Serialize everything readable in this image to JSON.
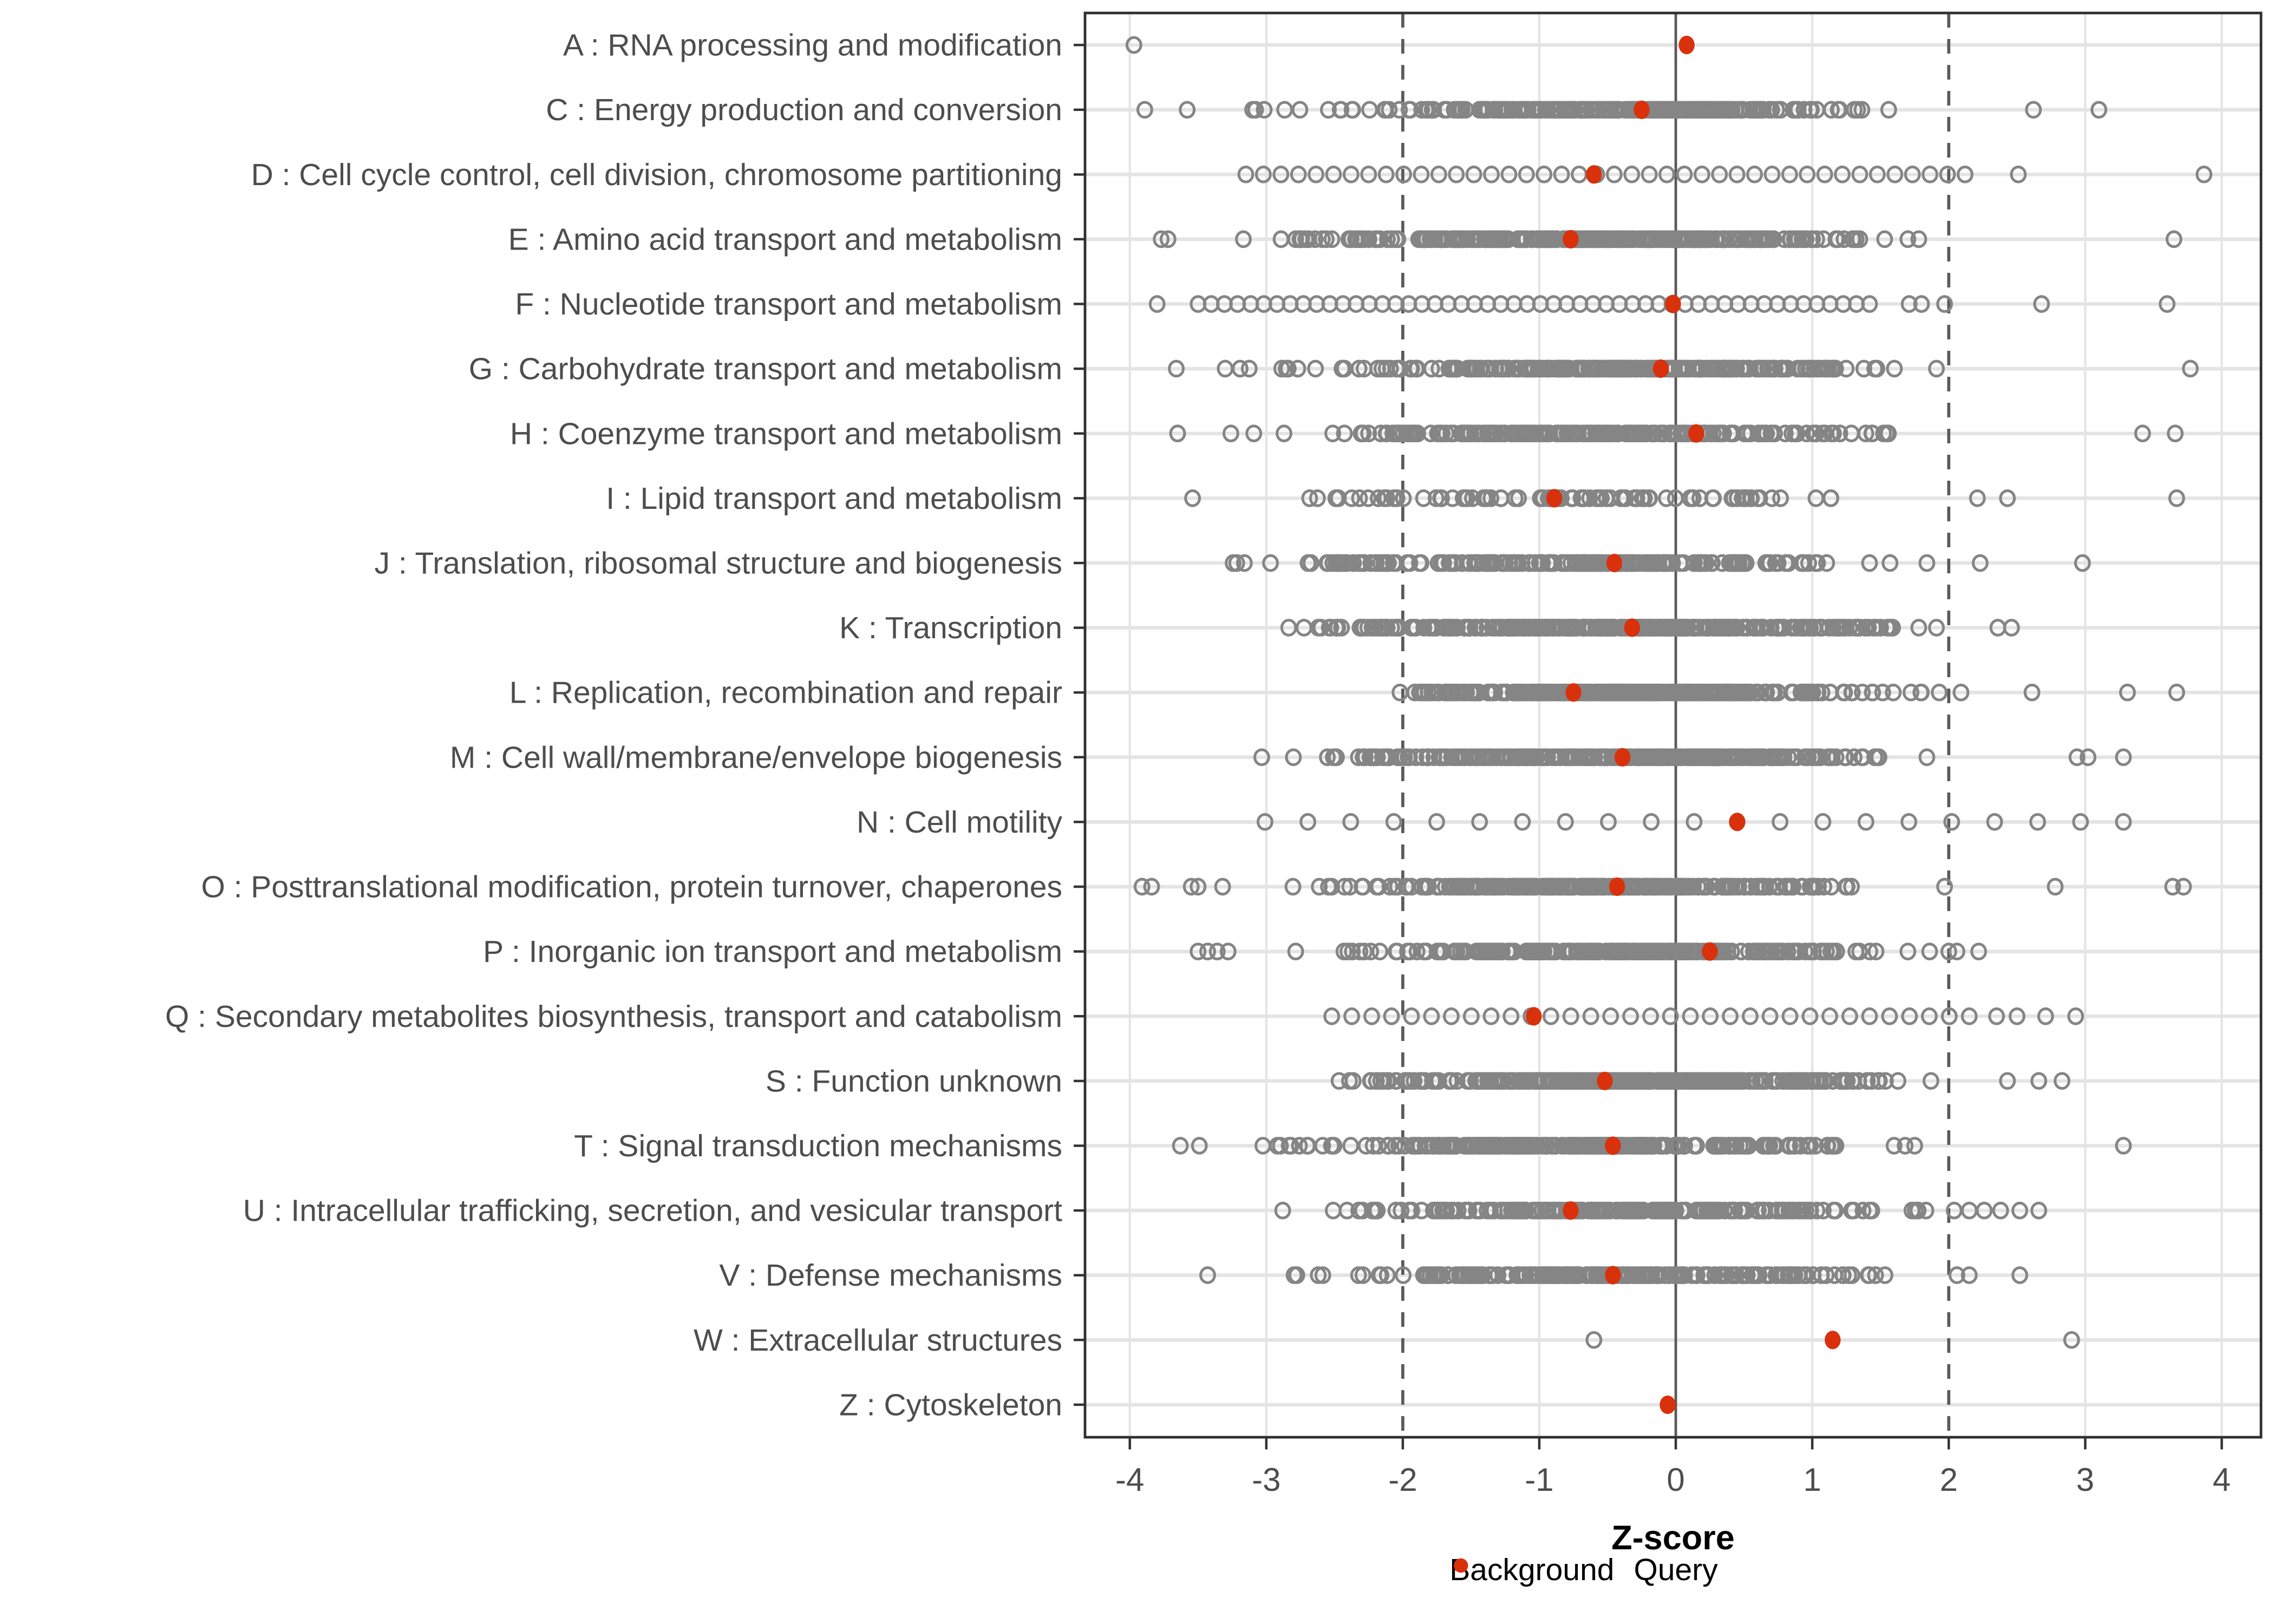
{
  "chart_data": {
    "type": "scatter",
    "subtype": "strip-plot",
    "title": "",
    "xlabel": "Z-score",
    "ylabel": "",
    "xlim": [
      -4.35,
      4.35
    ],
    "x_ticks": [
      -4,
      -3,
      -2,
      -1,
      0,
      1,
      2,
      3,
      4
    ],
    "grid": true,
    "reference_lines": {
      "solid_x": [
        0
      ],
      "dashed_x": [
        -2,
        2
      ]
    },
    "legend": {
      "background_label": "Background",
      "query_label": "Query",
      "position": "bottom"
    },
    "rows": [
      {
        "label": "A : RNA processing and modification",
        "query_z": 0.08,
        "background": {
          "band": null,
          "outliers": [
            -3.97
          ]
        }
      },
      {
        "label": "C : Energy production and conversion",
        "query_z": -0.25,
        "background": {
          "band": {
            "shape": "normal",
            "mu": -0.35,
            "sigma": 1.05,
            "min": -3.45,
            "max": 1.38,
            "n": 270
          },
          "outliers": [
            -3.89,
            -3.58,
            1.56,
            2.62,
            3.1
          ]
        }
      },
      {
        "label": "D : Cell cycle control, cell division, chromosome partitioning",
        "query_z": -0.6,
        "background": {
          "band": {
            "shape": "spaced",
            "min": -3.15,
            "max": 2.12,
            "n": 42
          },
          "outliers": [
            2.51,
            3.87
          ]
        }
      },
      {
        "label": "E : Amino acid transport and metabolism",
        "query_z": -0.77,
        "background": {
          "band": {
            "shape": "normal",
            "mu": -0.55,
            "sigma": 1.1,
            "min": -3.45,
            "max": 1.35,
            "n": 300
          },
          "outliers": [
            -3.77,
            -3.72,
            1.53,
            1.7,
            1.78,
            3.65
          ]
        }
      },
      {
        "label": "F : Nucleotide transport and metabolism",
        "query_z": -0.02,
        "background": {
          "band": {
            "shape": "spaced",
            "min": -3.5,
            "max": 1.42,
            "n": 52
          },
          "outliers": [
            -3.8,
            1.71,
            1.8,
            1.97,
            2.68,
            3.6
          ]
        }
      },
      {
        "label": "G : Carbohydrate transport and metabolism",
        "query_z": -0.11,
        "background": {
          "band": {
            "shape": "normal",
            "mu": -0.45,
            "sigma": 1.1,
            "min": -3.4,
            "max": 1.67,
            "n": 280
          },
          "outliers": [
            -3.66,
            1.91,
            3.77
          ]
        }
      },
      {
        "label": "H : Coenzyme transport and metabolism",
        "query_z": 0.15,
        "background": {
          "band": {
            "shape": "normal",
            "mu": -0.5,
            "sigma": 1.15,
            "min": -3.4,
            "max": 1.57,
            "n": 230
          },
          "outliers": [
            -3.65,
            3.42,
            3.66
          ]
        }
      },
      {
        "label": "I : Lipid transport and metabolism",
        "query_z": -0.89,
        "background": {
          "band": {
            "shape": "normal",
            "mu": -0.65,
            "sigma": 1.25,
            "min": -3.3,
            "max": 1.98,
            "n": 95
          },
          "outliers": [
            -3.54,
            2.21,
            2.43,
            3.67
          ]
        }
      },
      {
        "label": "J : Translation, ribosomal structure and biogenesis",
        "query_z": -0.45,
        "background": {
          "band": {
            "shape": "normal",
            "mu": -0.75,
            "sigma": 1.05,
            "min": -3.32,
            "max": 1.16,
            "n": 210
          },
          "outliers": [
            1.42,
            1.57,
            1.84,
            2.23,
            2.98
          ]
        }
      },
      {
        "label": "K : Transcription",
        "query_z": -0.32,
        "background": {
          "band": {
            "shape": "normal",
            "mu": -0.5,
            "sigma": 1.15,
            "min": -3.04,
            "max": 1.61,
            "n": 330
          },
          "outliers": [
            1.78,
            1.91,
            2.36,
            2.46
          ]
        }
      },
      {
        "label": "L : Replication, recombination and repair",
        "query_z": -0.75,
        "background": {
          "band": {
            "shape": "normal",
            "mu": -0.3,
            "sigma": 0.95,
            "min": -2.25,
            "max": 1.81,
            "n": 330
          },
          "outliers": [
            1.93,
            2.09,
            2.61,
            3.31,
            3.67
          ]
        }
      },
      {
        "label": "M : Cell wall/membrane/envelope biogenesis",
        "query_z": -0.39,
        "background": {
          "band": {
            "shape": "normal",
            "mu": -0.45,
            "sigma": 1.1,
            "min": -3.1,
            "max": 1.53,
            "n": 300
          },
          "outliers": [
            1.84,
            2.94,
            3.02,
            3.28
          ]
        }
      },
      {
        "label": "N : Cell motility",
        "query_z": 0.45,
        "background": {
          "band": {
            "shape": "spaced",
            "min": -3.01,
            "max": 3.28,
            "n": 21
          },
          "outliers": []
        }
      },
      {
        "label": "O : Posttranslational modification, protein turnover, chaperones",
        "query_z": -0.43,
        "background": {
          "band": {
            "shape": "normal",
            "mu": -0.55,
            "sigma": 1.1,
            "min": -3.04,
            "max": 1.47,
            "n": 270
          },
          "outliers": [
            -3.91,
            -3.84,
            -3.55,
            -3.5,
            -3.32,
            1.97,
            2.78,
            3.64,
            3.72
          ]
        }
      },
      {
        "label": "P : Inorganic ion transport and metabolism",
        "query_z": 0.25,
        "background": {
          "band": {
            "shape": "normal",
            "mu": -0.4,
            "sigma": 1.0,
            "min": -2.9,
            "max": 1.47,
            "n": 250
          },
          "outliers": [
            -3.5,
            -3.43,
            -3.36,
            -3.28,
            1.7,
            1.86,
            2.0,
            2.06,
            2.22
          ]
        }
      },
      {
        "label": "Q : Secondary metabolites biosynthesis, transport and catabolism",
        "query_z": -1.04,
        "background": {
          "band": {
            "shape": "spaced",
            "min": -2.52,
            "max": 2.15,
            "n": 33
          },
          "outliers": [
            2.35,
            2.5,
            2.71,
            2.93
          ]
        }
      },
      {
        "label": "S : Function unknown",
        "query_z": -0.52,
        "background": {
          "band": {
            "shape": "normal",
            "mu": -0.35,
            "sigma": 1.0,
            "min": -2.77,
            "max": 1.64,
            "n": 340
          },
          "outliers": [
            1.87,
            2.43,
            2.66,
            2.83
          ]
        }
      },
      {
        "label": "T : Signal transduction mechanisms",
        "query_z": -0.46,
        "background": {
          "band": {
            "shape": "normal",
            "mu": -0.6,
            "sigma": 1.05,
            "min": -3.1,
            "max": 1.45,
            "n": 260
          },
          "outliers": [
            -3.63,
            -3.49,
            1.6,
            1.68,
            1.75,
            3.28
          ]
        }
      },
      {
        "label": "U : Intracellular trafficking, secretion, and vesicular transport",
        "query_z": -0.77,
        "background": {
          "band": {
            "shape": "normal",
            "mu": -0.4,
            "sigma": 1.0,
            "min": -2.6,
            "max": 1.87,
            "n": 240
          },
          "outliers": [
            -2.88,
            2.04,
            2.15,
            2.26,
            2.38,
            2.52,
            2.66
          ]
        }
      },
      {
        "label": "V : Defense mechanisms",
        "query_z": -0.46,
        "background": {
          "band": {
            "shape": "normal",
            "mu": -0.5,
            "sigma": 1.05,
            "min": -2.95,
            "max": 1.56,
            "n": 220
          },
          "outliers": [
            -3.43,
            2.06,
            2.15,
            2.52
          ]
        }
      },
      {
        "label": "W : Extracellular structures",
        "query_z": 1.15,
        "background": {
          "band": null,
          "outliers": [
            -0.6,
            2.9
          ]
        }
      },
      {
        "label": "Z : Cytoskeleton",
        "query_z": -0.06,
        "background": {
          "band": null,
          "outliers": []
        }
      }
    ]
  },
  "colors": {
    "query": "#D8310C",
    "background_stroke": "#858585",
    "grid": "#E4E4E4",
    "refline": "#5A5A5A",
    "axis_text": "#4D4D4D",
    "panel_border": "#2F2F2F",
    "tick": "#333333"
  }
}
